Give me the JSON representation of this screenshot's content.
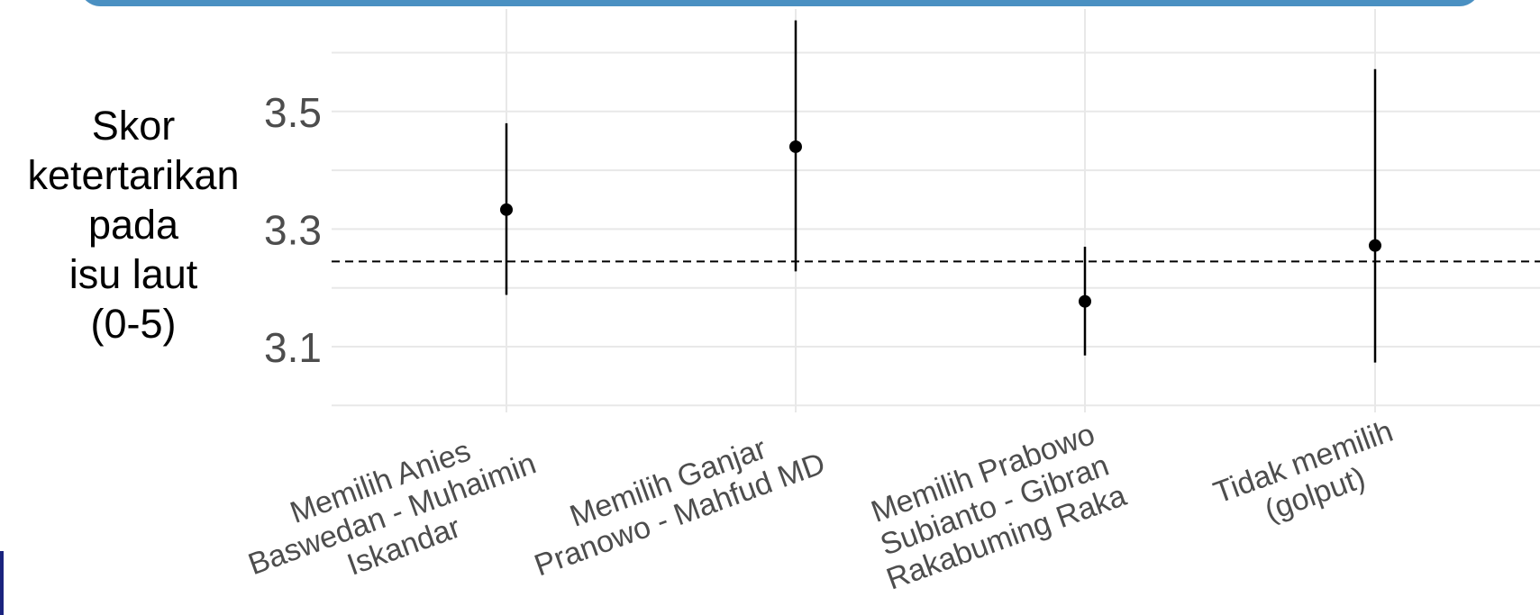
{
  "chart_data": {
    "type": "scatter",
    "subtype": "point-range (mean with interval)",
    "title": "",
    "xlabel": "",
    "ylabel": "Skor\nketertarikan\npada\nisu laut\n(0-5)",
    "categories": [
      "Memilih Anies\nBaswedan - Muhaimin\nIskandar",
      "Memilih Ganjar\nPranowo - Mahfud MD",
      "Memilih Prabowo\nSubianto - Gibran\nRakabuming Raka",
      "Tidak memilih\n(golput)"
    ],
    "series": [
      {
        "values": [
          3.333,
          3.44,
          3.177,
          3.272
        ],
        "lower": [
          3.188,
          3.228,
          3.085,
          3.073
        ],
        "upper": [
          3.48,
          3.655,
          3.27,
          3.572
        ]
      }
    ],
    "reference_line": {
      "y": 3.245,
      "style": "dashed"
    },
    "yticks": [
      3.1,
      3.3,
      3.5
    ],
    "ytick_labels": [
      "3.1",
      "3.3",
      "3.5"
    ],
    "ylim": [
      2.995,
      3.7
    ],
    "grid": true,
    "legend": "none",
    "colors": {
      "points": "#000000",
      "grid": "#e8e8e8",
      "tick_text": "#4d4d4d",
      "banner": "#4a90c2"
    }
  }
}
